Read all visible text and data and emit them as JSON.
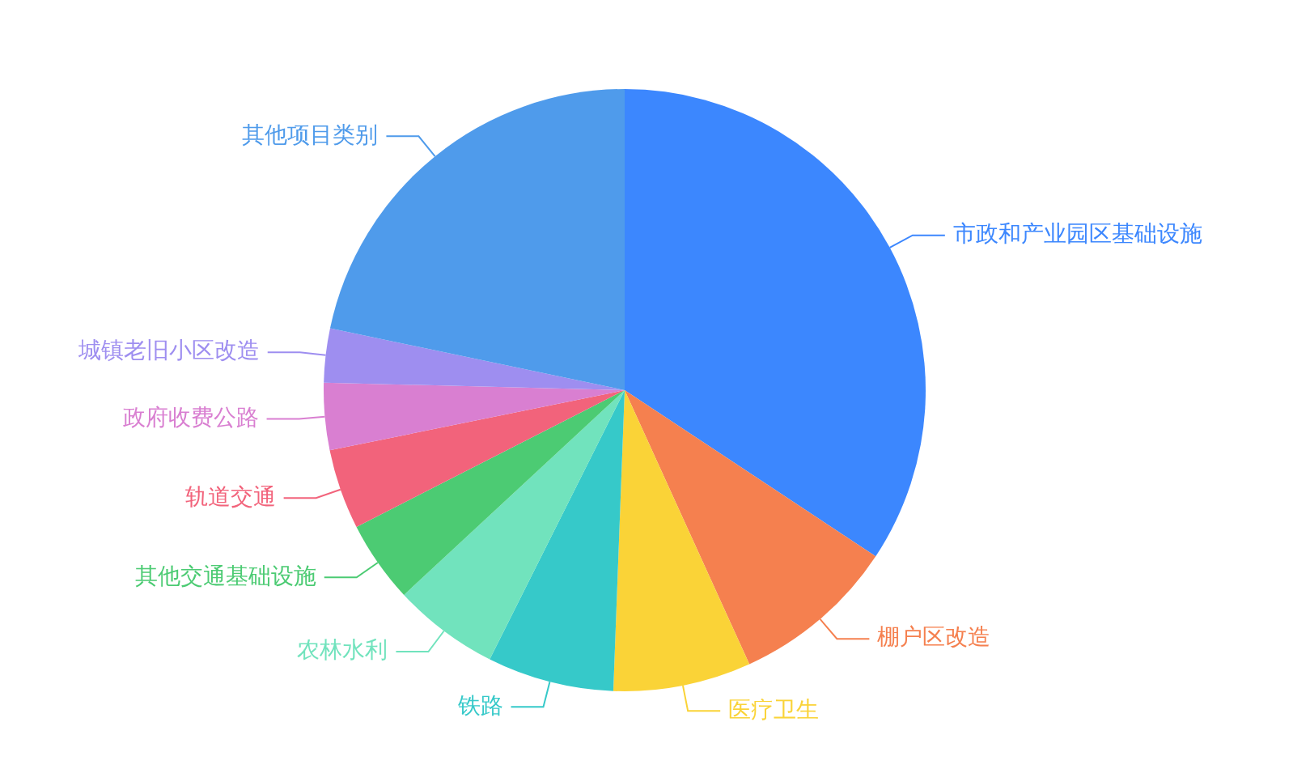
{
  "chart_data": {
    "type": "pie",
    "categories": [
      "市政和产业园区基础设施",
      "棚户区改造",
      "医疗卫生",
      "铁路",
      "农林水利",
      "其他交通基础设施",
      "轨道交通",
      "政府收费公路",
      "城镇老旧小区改造",
      "其他项目类别"
    ],
    "values": [
      34.3,
      8.9,
      7.4,
      6.8,
      5.7,
      4.4,
      4.3,
      3.6,
      2.9,
      21.7
    ],
    "colors": [
      "#3c87fe",
      "#f5804f",
      "#fad337",
      "#36c9c9",
      "#71e3bd",
      "#4ccb73",
      "#f2637b",
      "#d97fd1",
      "#9e8ef0",
      "#4f9beb"
    ]
  }
}
